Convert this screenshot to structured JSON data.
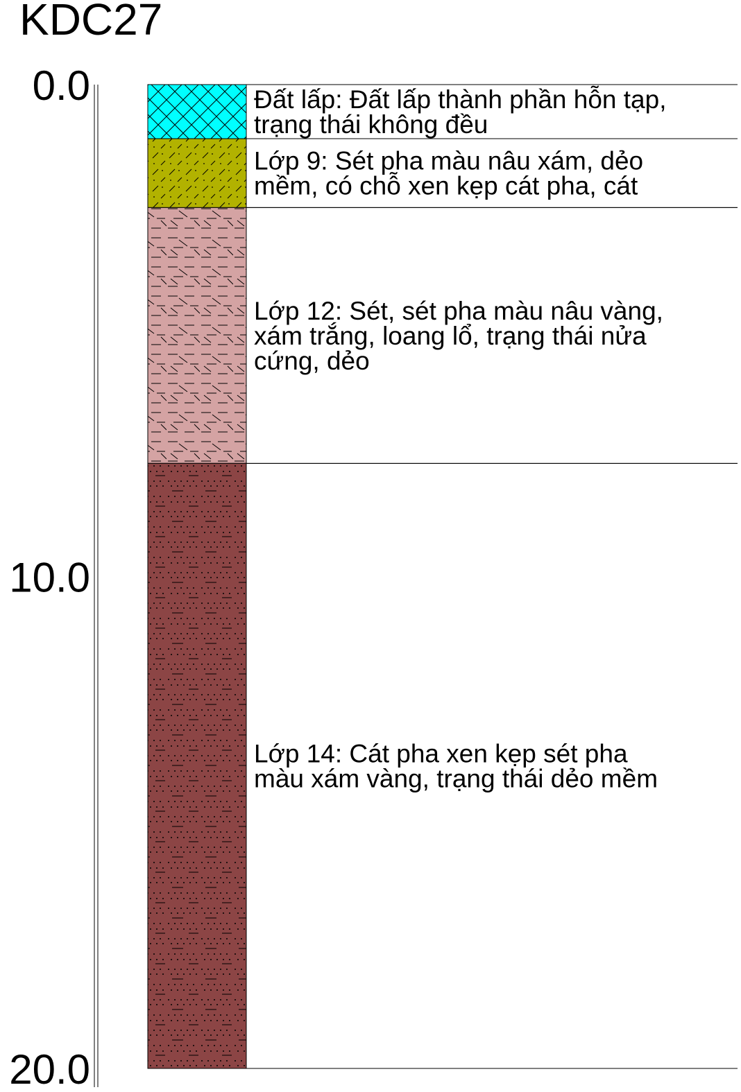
{
  "borehole": {
    "id": "KDC27",
    "depth_ticks": [
      {
        "value": 0.0,
        "label": "0.0"
      },
      {
        "value": 10.0,
        "label": "10.0"
      },
      {
        "value": 20.0,
        "label": "20.0"
      }
    ],
    "depth_range": [
      0,
      20
    ],
    "layers": [
      {
        "top": 0.0,
        "bottom": 1.1,
        "fill_color": "#00ffff",
        "pattern": "crosshatch",
        "description_lines": [
          "Đất lấp: Đất lấp thành phần hỗn tạp,",
          "trạng thái không đều"
        ]
      },
      {
        "top": 1.1,
        "bottom": 2.5,
        "fill_color": "#b2b200",
        "pattern": "slash-dots",
        "description_lines": [
          "Lớp 9: Sét pha màu nâu xám, dẻo",
          "mềm, có chỗ xen kẹp cát pha, cát"
        ]
      },
      {
        "top": 2.5,
        "bottom": 7.7,
        "fill_color": "#d4a3a3",
        "pattern": "clay-dash",
        "description_lines": [
          "Lớp 12: Sét, sét pha màu nâu vàng,",
          "xám trắng, loang lổ, trạng thái nửa",
          "cứng, dẻo"
        ]
      },
      {
        "top": 7.7,
        "bottom": 20.0,
        "fill_color": "#8c4545",
        "pattern": "sand-dots",
        "description_lines": [
          "Lớp 14: Cát pha xen kẹp sét pha",
          "màu xám vàng, trạng thái dẻo mềm"
        ]
      }
    ]
  }
}
